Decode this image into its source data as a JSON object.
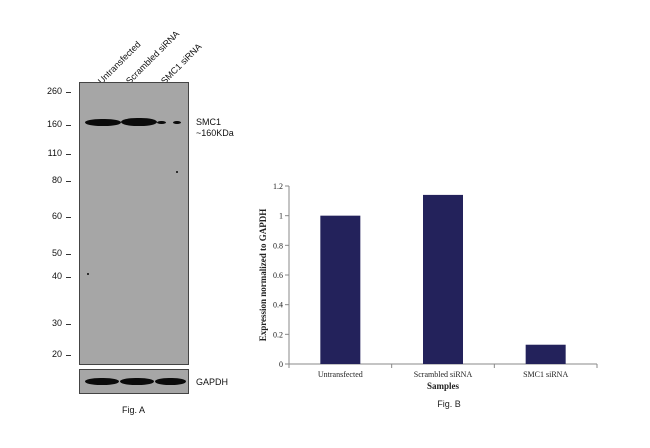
{
  "figure_a": {
    "lane_labels": [
      "Untransfected",
      "Scrambled siRNA",
      "SMC1 siRNA"
    ],
    "mw_markers": [
      "260",
      "160",
      "110",
      "80",
      "60",
      "50",
      "40",
      "30",
      "20"
    ],
    "target_label": "SMC1",
    "target_size": "~160KDa",
    "loading_control": "GAPDH",
    "caption": "Fig. A"
  },
  "figure_b": {
    "caption": "Fig. B"
  },
  "chart_data": {
    "type": "bar",
    "categories": [
      "Untransfected",
      "Scrambled siRNA",
      "SMC1 siRNA"
    ],
    "values": [
      1.0,
      1.14,
      0.13
    ],
    "xlabel": "Samples",
    "ylabel": "Expression normalized to GAPDH",
    "ylim": [
      0,
      1.2
    ],
    "yticks": [
      "0",
      "0.2",
      "0.4",
      "0.6",
      "0.8",
      "1",
      "1.2"
    ],
    "bar_color": "#23225b",
    "grid": false
  }
}
